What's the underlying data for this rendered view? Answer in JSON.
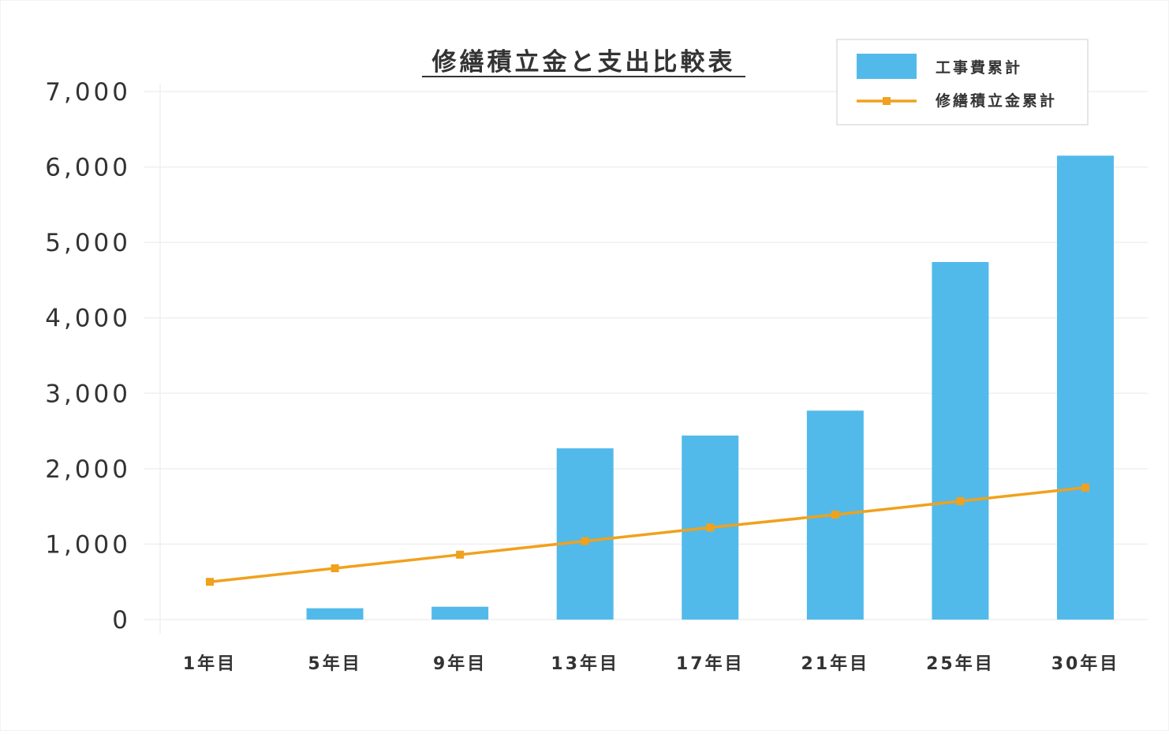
{
  "chart_data": {
    "type": "bar",
    "title": "修繕積立金と支出比較表",
    "categories": [
      "1年目",
      "5年目",
      "9年目",
      "13年目",
      "17年目",
      "21年目",
      "25年目",
      "30年目"
    ],
    "series": [
      {
        "name": "工事費累計",
        "type": "bar",
        "color": "#52baea",
        "values": [
          0,
          150,
          170,
          2270,
          2440,
          2770,
          4740,
          6150
        ]
      },
      {
        "name": "修繕積立金累計",
        "type": "line",
        "color": "#f0a11d",
        "values": [
          500,
          680,
          860,
          1040,
          1220,
          1390,
          1570,
          1750
        ]
      }
    ],
    "yticks": [
      "0",
      "1,000",
      "2,000",
      "3,000",
      "4,000",
      "5,000",
      "6,000",
      "7,000"
    ],
    "ylim": [
      0,
      7000
    ],
    "grid": true,
    "legend_position": "top-right"
  }
}
